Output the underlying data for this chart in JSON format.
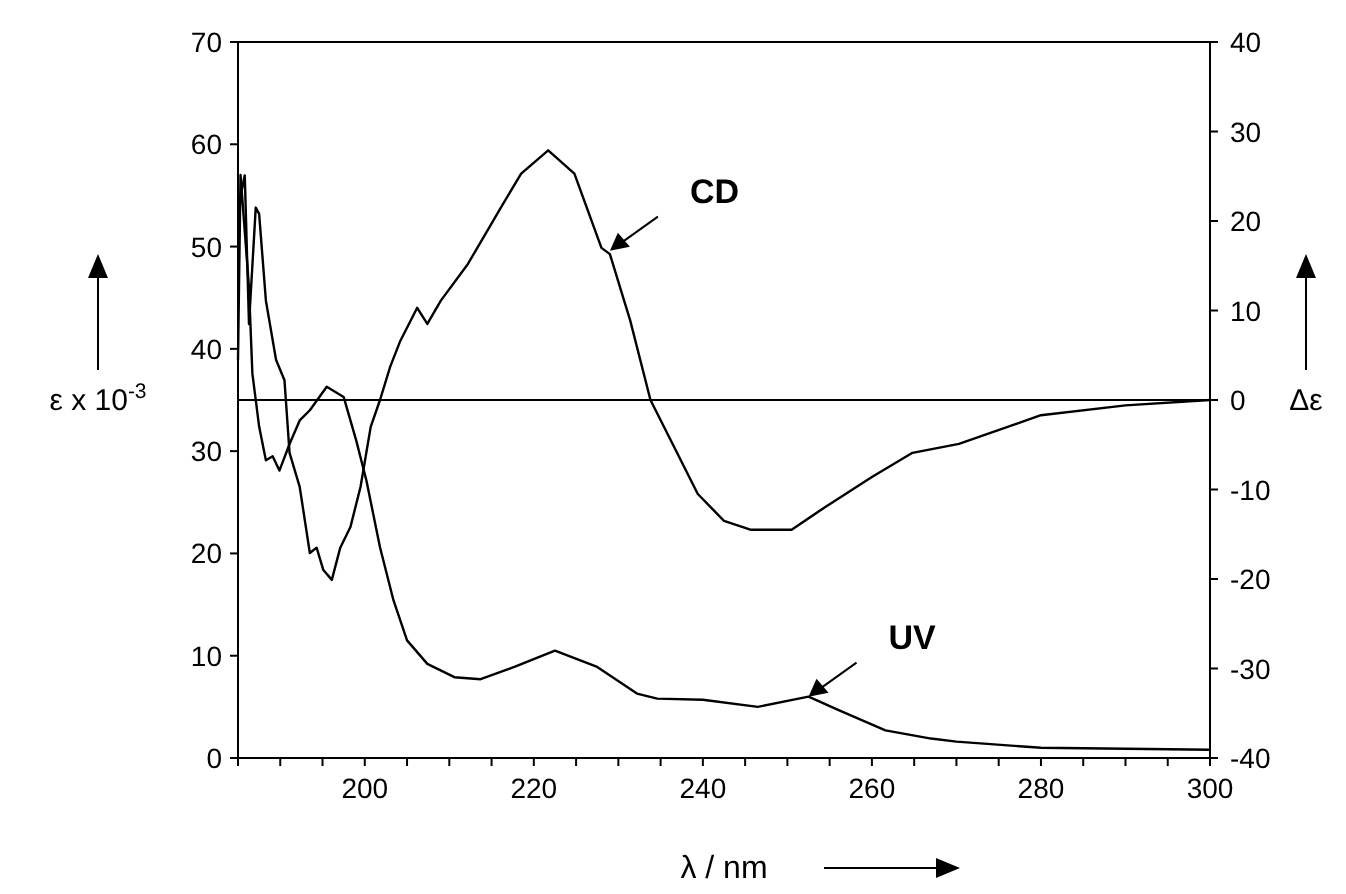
{
  "chart_data": {
    "type": "line",
    "xlabel": "λ / nm",
    "ylabel": "ε x 10$^{-3}$",
    "y2label": "Δε",
    "xlim": [
      185,
      300
    ],
    "xticks": [
      {
        "value": 185,
        "label": null
      },
      {
        "value": 190,
        "label": null
      },
      {
        "value": 195,
        "label": null
      },
      200,
      {
        "value": 205,
        "label": null
      },
      {
        "value": 210,
        "label": null
      },
      {
        "value": 215,
        "label": null
      },
      220,
      {
        "value": 225,
        "label": null
      },
      {
        "value": 230,
        "label": null
      },
      {
        "value": 235,
        "label": null
      },
      240,
      {
        "value": 245,
        "label": null
      },
      {
        "value": 250,
        "label": null
      },
      {
        "value": 255,
        "label": null
      },
      260,
      {
        "value": 265,
        "label": null
      },
      {
        "value": 270,
        "label": null
      },
      {
        "value": 275,
        "label": null
      },
      280,
      {
        "value": 285,
        "label": null
      },
      {
        "value": 290,
        "label": null
      },
      {
        "value": 295,
        "label": null
      },
      300
    ],
    "ylim": [
      0,
      70
    ],
    "yticks": [
      0,
      10,
      20,
      30,
      40,
      50,
      60,
      70
    ],
    "y2lim": [
      -40,
      40
    ],
    "y2ticks": [
      -40,
      -30,
      -20,
      -10,
      0,
      10,
      20,
      30,
      40
    ],
    "grid": false,
    "line_style": "solid",
    "ref_lines": [
      {
        "axis": "y2",
        "value": 0,
        "label": null,
        "color": "#000000"
      }
    ],
    "series": [
      {
        "color": "#000000",
        "axis": "y",
        "x": [
          185,
          185.3,
          186.3,
          186.7,
          187.5,
          188.3,
          189.1,
          189.9,
          191.1,
          192.3,
          193.5,
          195.5,
          197.5,
          199,
          200.2,
          201.8,
          203.4,
          205,
          207.4,
          210.6,
          213.7,
          217.7,
          222.5,
          227.5,
          232.2,
          234.6,
          240,
          246.5,
          252.5,
          256,
          261.6,
          267,
          270,
          280,
          290,
          300
        ],
        "values": [
          38.9,
          57,
          46,
          37.6,
          32.4,
          29.1,
          29.5,
          28.1,
          30.7,
          33,
          34,
          36.3,
          35.3,
          31,
          27.1,
          20.6,
          15.4,
          11.5,
          9.2,
          7.9,
          7.7,
          8.9,
          10.5,
          8.9,
          6.3,
          5.8,
          5.7,
          5,
          6,
          4.7,
          2.7,
          1.9,
          1.6,
          1,
          0.9,
          0.8
        ]
      },
      {
        "color": "#000000",
        "axis": "y2",
        "x": [
          185.2,
          185.8,
          186.3,
          187.1,
          187.5,
          188.3,
          189.5,
          190.5,
          191.1,
          192.3,
          193.5,
          194.3,
          195.1,
          196.1,
          197.1,
          198.3,
          199.5,
          200.7,
          201.8,
          203,
          204.2,
          206.2,
          207.4,
          209,
          212.2,
          216.1,
          218.5,
          221.7,
          224.8,
          228,
          229,
          231.4,
          233.8,
          236.2,
          239.4,
          242.5,
          245.7,
          250.5,
          254.4,
          260,
          264.8,
          270.3,
          280,
          290,
          300
        ],
        "values": [
          22.3,
          25.1,
          8.5,
          21.5,
          20.8,
          11.1,
          4.5,
          2.2,
          -5.9,
          -9.7,
          -17.1,
          -16.5,
          -19,
          -20.1,
          -16.5,
          -14.2,
          -9.7,
          -3,
          0,
          3.7,
          6.6,
          10.3,
          8.5,
          11.1,
          15.2,
          21.5,
          25.3,
          27.9,
          25.3,
          17,
          16.3,
          8.9,
          0,
          -4.5,
          -10.5,
          -13.5,
          -14.5,
          -14.5,
          -12,
          -8.6,
          -5.9,
          -4.9,
          -1.7,
          -0.6,
          0
        ]
      }
    ],
    "annotations": [
      {
        "text": "CD",
        "x": 229,
        "y": 49.6
      },
      {
        "text": "UV",
        "x": 252.5,
        "y": 6
      }
    ]
  }
}
